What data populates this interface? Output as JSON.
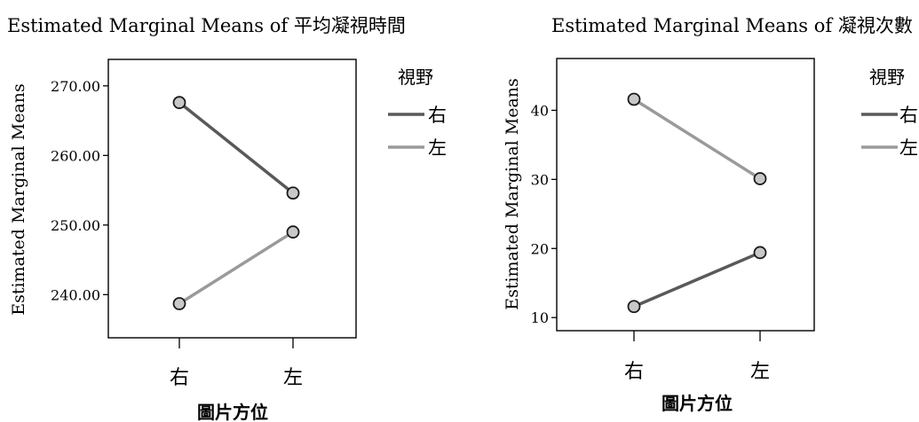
{
  "chart_data": [
    {
      "type": "line",
      "title": "Estimated Marginal Means of 平均凝視時間",
      "xlabel": "圖片方位",
      "ylabel": "Estimated Marginal Means",
      "categories": [
        "右",
        "左"
      ],
      "yticks": [
        "240.00",
        "250.00",
        "260.00",
        "270.00"
      ],
      "ylim": [
        233.8,
        273.8
      ],
      "grid": false,
      "legend_title": "視野",
      "legend_position": "right",
      "series": [
        {
          "name": "右",
          "values": [
            267.6,
            254.6
          ],
          "color": "#595959"
        },
        {
          "name": "左",
          "values": [
            238.7,
            249.0
          ],
          "color": "#9a9a9a"
        }
      ]
    },
    {
      "type": "line",
      "title": "Estimated Marginal Means of 凝視次數",
      "xlabel": "圖片方位",
      "ylabel": "Estimated Marginal Means",
      "categories": [
        "右",
        "左"
      ],
      "yticks": [
        "10",
        "20",
        "30",
        "40"
      ],
      "ylim": [
        8.1,
        47.5
      ],
      "grid": false,
      "legend_title": "視野",
      "legend_position": "right",
      "series": [
        {
          "name": "右",
          "values": [
            11.6,
            19.4
          ],
          "color": "#595959"
        },
        {
          "name": "左",
          "values": [
            41.6,
            30.1
          ],
          "color": "#9a9a9a"
        }
      ]
    }
  ]
}
